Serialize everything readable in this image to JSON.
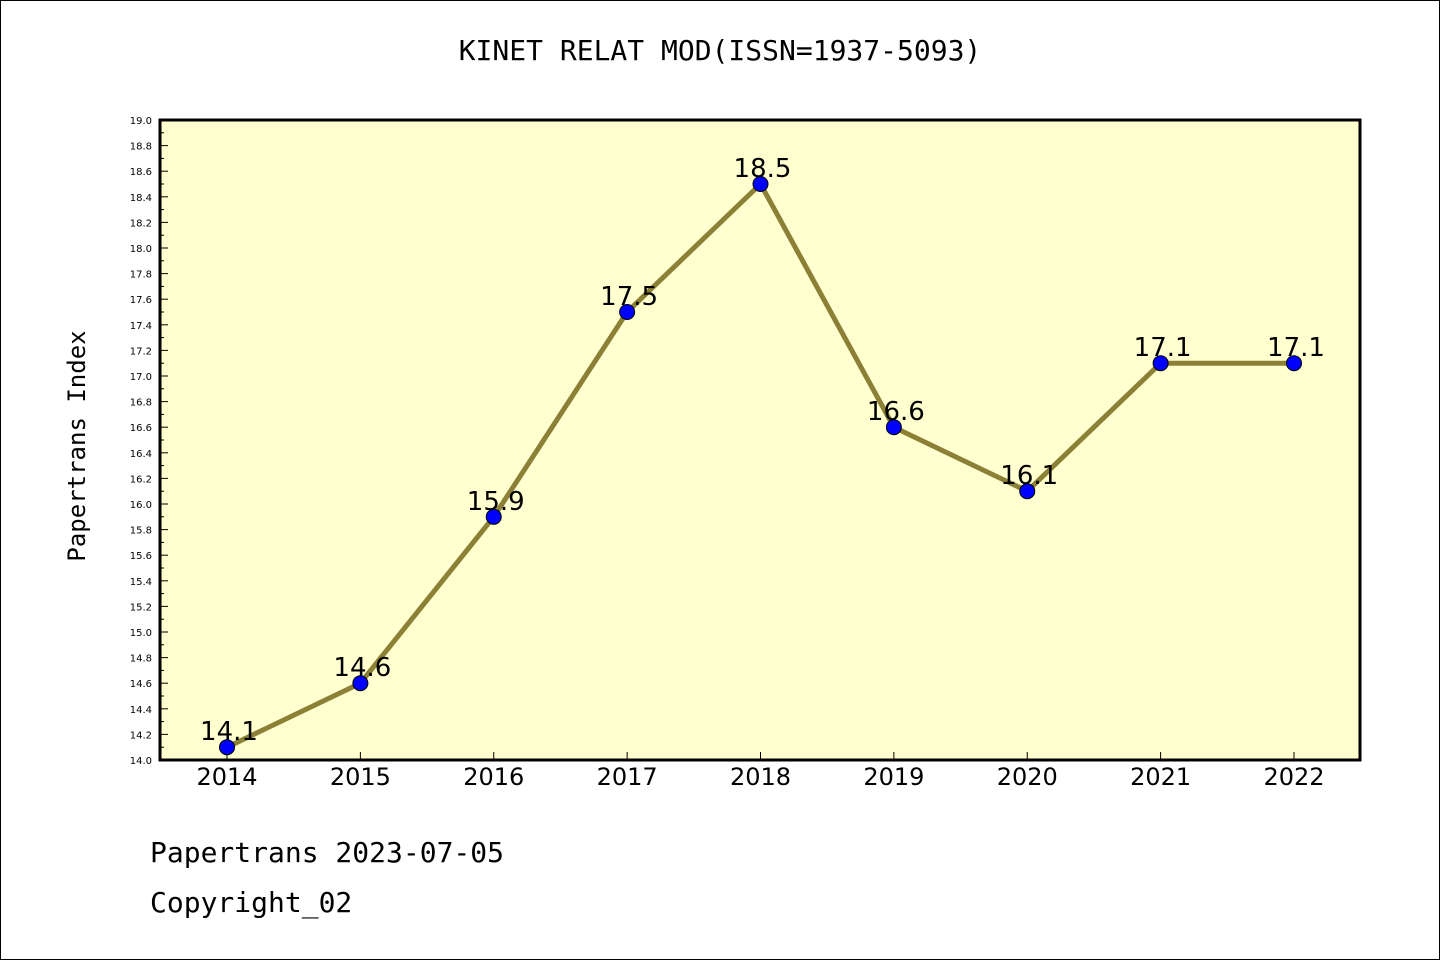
{
  "chart_data": {
    "type": "line",
    "title": "KINET RELAT MOD(ISSN=1937-5093)",
    "xlabel": "",
    "ylabel": "Papertrans Index",
    "categories": [
      "2014",
      "2015",
      "2016",
      "2017",
      "2018",
      "2019",
      "2020",
      "2021",
      "2022"
    ],
    "series": [
      {
        "values": [
          14.1,
          14.6,
          15.9,
          17.5,
          18.5,
          16.6,
          16.1,
          17.1,
          17.1
        ],
        "labels": [
          "14.1",
          "14.6",
          "15.9",
          "17.5",
          "18.5",
          "16.6",
          "16.1",
          "17.1",
          "17.1"
        ]
      }
    ],
    "ylim": [
      14.0,
      19.0
    ],
    "yticks": [
      "14.0",
      "14.2",
      "14.4",
      "14.6",
      "14.8",
      "15.0",
      "15.2",
      "15.4",
      "15.6",
      "15.8",
      "16.0",
      "16.2",
      "16.4",
      "16.6",
      "16.8",
      "17.0",
      "17.2",
      "17.4",
      "17.6",
      "17.8",
      "18.0",
      "18.2",
      "18.4",
      "18.6",
      "18.8",
      "19.0"
    ],
    "grid": false,
    "colors": {
      "plot_background": "#ffffd0",
      "line": "#8b8035",
      "marker": "#0000ff"
    }
  },
  "footer": {
    "date_line": "Papertrans 2023-07-05",
    "copyright_line": "Copyright_02"
  }
}
